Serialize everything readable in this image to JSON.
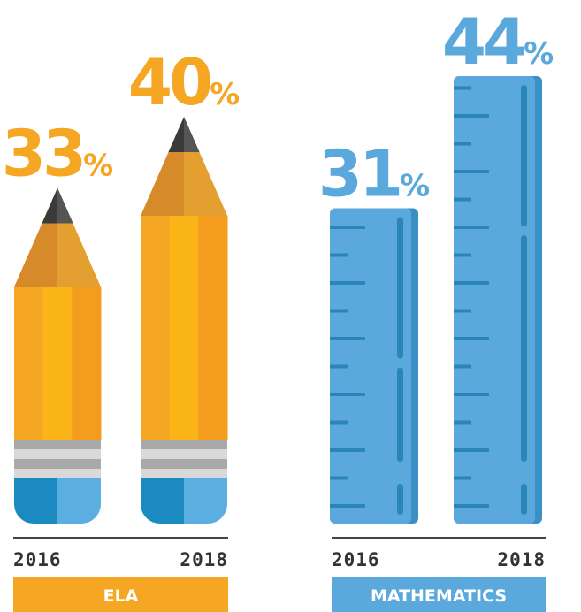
{
  "chart_data": {
    "type": "pictograph-bar",
    "groups": [
      {
        "name": "ELA",
        "color": "#f5a623",
        "categories": [
          "2016",
          "2018"
        ],
        "values": [
          33,
          40
        ],
        "value_labels": [
          "33%",
          "40%"
        ]
      },
      {
        "name": "MATHEMATICS",
        "color": "#5ba8dc",
        "categories": [
          "2016",
          "2018"
        ],
        "values": [
          31,
          44
        ],
        "value_labels": [
          "31%",
          "44%"
        ]
      }
    ]
  }
}
